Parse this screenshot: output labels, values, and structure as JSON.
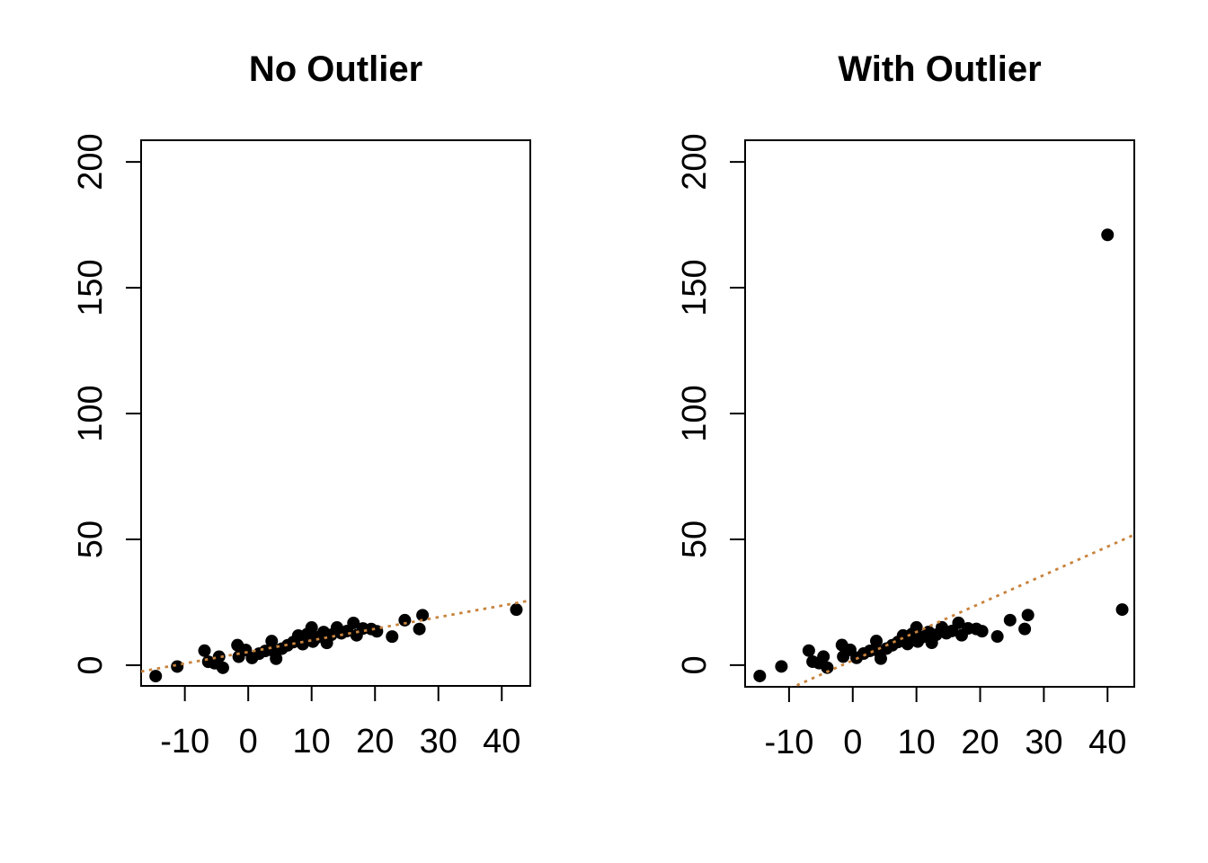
{
  "figure": {
    "background": "#ffffff",
    "text_color": "#000000",
    "point_color": "#000000",
    "trend_color": "#c8823c"
  },
  "chart_data": [
    {
      "type": "scatter",
      "title": "No Outlier",
      "xlabel": "",
      "ylabel": "",
      "xlim": [
        -16.9,
        44.5
      ],
      "ylim": [
        -8.2,
        208.6
      ],
      "xticks": [
        -10,
        0,
        10,
        20,
        30,
        40
      ],
      "yticks": [
        0,
        50,
        100,
        150,
        200
      ],
      "grid": false,
      "point_color": "#000000",
      "point_radius": 7,
      "trend_line": {
        "slope": 0.46,
        "intercept": 5.3,
        "style": "dotted",
        "color": "#c8823c"
      },
      "points": [
        [
          -14.6,
          -4.3
        ],
        [
          -11.2,
          -0.5
        ],
        [
          -6.9,
          5.8
        ],
        [
          -6.3,
          1.4
        ],
        [
          -5.3,
          0.8
        ],
        [
          -4.6,
          3.4
        ],
        [
          -4.0,
          -1.0
        ],
        [
          -1.7,
          8.0
        ],
        [
          -1.5,
          3.4
        ],
        [
          -0.4,
          6.1
        ],
        [
          0.6,
          2.9
        ],
        [
          1.7,
          4.6
        ],
        [
          2.7,
          5.7
        ],
        [
          3.7,
          9.6
        ],
        [
          4.1,
          5.4
        ],
        [
          4.4,
          2.6
        ],
        [
          5.3,
          6.6
        ],
        [
          6.2,
          7.9
        ],
        [
          7.1,
          9.2
        ],
        [
          7.9,
          11.8
        ],
        [
          8.6,
          8.4
        ],
        [
          9.3,
          12.4
        ],
        [
          10.0,
          15.0
        ],
        [
          10.2,
          9.4
        ],
        [
          10.9,
          11.1
        ],
        [
          11.9,
          13.2
        ],
        [
          12.4,
          8.9
        ],
        [
          13.1,
          12.1
        ],
        [
          14.0,
          15.0
        ],
        [
          14.7,
          12.7
        ],
        [
          15.6,
          13.6
        ],
        [
          16.6,
          16.8
        ],
        [
          17.1,
          11.9
        ],
        [
          18.1,
          14.6
        ],
        [
          19.4,
          14.4
        ],
        [
          20.3,
          13.5
        ],
        [
          22.7,
          11.4
        ],
        [
          24.7,
          17.9
        ],
        [
          27.0,
          14.4
        ],
        [
          27.5,
          19.9
        ],
        [
          42.3,
          22.1
        ]
      ]
    },
    {
      "type": "scatter",
      "title": "With Outlier",
      "xlabel": "",
      "ylabel": "",
      "xlim": [
        -16.9,
        44.2
      ],
      "ylim": [
        -8.6,
        208.6
      ],
      "xticks": [
        -10,
        0,
        10,
        20,
        30,
        40
      ],
      "yticks": [
        0,
        50,
        100,
        150,
        200
      ],
      "grid": false,
      "point_color": "#000000",
      "point_radius": 7,
      "trend_line": {
        "slope": 1.13,
        "intercept": 1.9,
        "style": "dotted",
        "color": "#c8823c"
      },
      "outlier_point": [
        40,
        171
      ],
      "points": [
        [
          -14.6,
          -4.3
        ],
        [
          -11.2,
          -0.5
        ],
        [
          -6.9,
          5.8
        ],
        [
          -6.3,
          1.4
        ],
        [
          -5.3,
          0.8
        ],
        [
          -4.6,
          3.4
        ],
        [
          -4.0,
          -1.0
        ],
        [
          -1.7,
          8.0
        ],
        [
          -1.5,
          3.4
        ],
        [
          -0.4,
          6.1
        ],
        [
          0.6,
          2.9
        ],
        [
          1.7,
          4.6
        ],
        [
          2.7,
          5.7
        ],
        [
          3.7,
          9.6
        ],
        [
          4.1,
          5.4
        ],
        [
          4.4,
          2.6
        ],
        [
          5.3,
          6.6
        ],
        [
          6.2,
          7.9
        ],
        [
          7.1,
          9.2
        ],
        [
          7.9,
          11.8
        ],
        [
          8.6,
          8.4
        ],
        [
          9.3,
          12.4
        ],
        [
          10.0,
          15.0
        ],
        [
          10.2,
          9.4
        ],
        [
          10.9,
          11.1
        ],
        [
          11.9,
          13.2
        ],
        [
          12.4,
          8.9
        ],
        [
          13.1,
          12.1
        ],
        [
          14.0,
          15.0
        ],
        [
          14.7,
          12.7
        ],
        [
          15.6,
          13.6
        ],
        [
          16.6,
          16.8
        ],
        [
          17.1,
          11.9
        ],
        [
          18.1,
          14.6
        ],
        [
          19.4,
          14.4
        ],
        [
          20.3,
          13.5
        ],
        [
          22.7,
          11.4
        ],
        [
          24.7,
          17.9
        ],
        [
          27.0,
          14.4
        ],
        [
          27.5,
          19.9
        ],
        [
          42.3,
          22.1
        ],
        [
          40,
          171
        ]
      ]
    }
  ]
}
